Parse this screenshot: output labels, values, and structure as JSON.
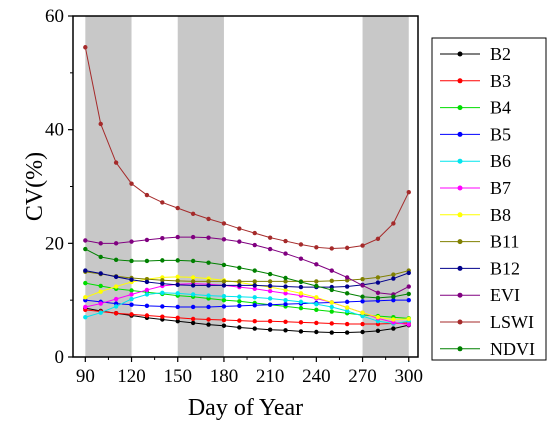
{
  "chart_data": {
    "type": "line",
    "title": "",
    "xlabel": "Day of Year",
    "ylabel": "CV(%)",
    "xlim": [
      82,
      306
    ],
    "ylim": [
      0,
      60
    ],
    "xticks": [
      90,
      120,
      150,
      180,
      210,
      240,
      270,
      300
    ],
    "yticks": [
      0,
      20,
      40,
      60
    ],
    "x": [
      90,
      100,
      110,
      120,
      130,
      140,
      150,
      160,
      170,
      180,
      190,
      200,
      210,
      220,
      230,
      240,
      250,
      260,
      270,
      280,
      290,
      300
    ],
    "shaded_ranges": [
      [
        90,
        120
      ],
      [
        150,
        180
      ],
      [
        270,
        300
      ]
    ],
    "shade_color": "#c8c8c8",
    "grid": false,
    "legend_position": "right",
    "series": [
      {
        "name": "B2",
        "color": "#000000",
        "values": [
          8.6,
          8.1,
          7.7,
          7.3,
          6.9,
          6.6,
          6.3,
          6.0,
          5.7,
          5.5,
          5.2,
          5.0,
          4.8,
          4.7,
          4.5,
          4.4,
          4.3,
          4.3,
          4.4,
          4.6,
          5.0,
          5.6
        ]
      },
      {
        "name": "B3",
        "color": "#ff0000",
        "values": [
          8.3,
          8.0,
          7.7,
          7.5,
          7.3,
          7.1,
          6.9,
          6.7,
          6.6,
          6.5,
          6.4,
          6.3,
          6.3,
          6.2,
          6.1,
          6.0,
          5.9,
          5.8,
          5.8,
          5.8,
          5.9,
          6.0
        ]
      },
      {
        "name": "B4",
        "color": "#00dd00",
        "values": [
          13.0,
          12.5,
          12.0,
          11.7,
          11.4,
          11.1,
          10.8,
          10.6,
          10.3,
          10.0,
          9.8,
          9.5,
          9.2,
          8.9,
          8.6,
          8.3,
          8.0,
          7.7,
          7.4,
          7.2,
          7.0,
          6.8
        ]
      },
      {
        "name": "B5",
        "color": "#0000ff",
        "values": [
          10.0,
          9.7,
          9.4,
          9.2,
          9.0,
          8.9,
          8.8,
          8.8,
          8.8,
          8.9,
          9.0,
          9.1,
          9.2,
          9.3,
          9.4,
          9.5,
          9.6,
          9.7,
          9.8,
          9.9,
          10.0,
          10.0
        ]
      },
      {
        "name": "B6",
        "color": "#00e5ee",
        "values": [
          7.0,
          7.8,
          8.9,
          10.2,
          11.0,
          11.3,
          11.2,
          11.0,
          10.8,
          10.7,
          10.6,
          10.5,
          10.3,
          10.0,
          9.7,
          9.3,
          8.8,
          8.1,
          7.2,
          6.3,
          5.9,
          6.3
        ]
      },
      {
        "name": "B7",
        "color": "#ff00ff",
        "values": [
          8.8,
          9.4,
          10.2,
          11.0,
          11.8,
          12.5,
          12.8,
          12.9,
          12.8,
          12.6,
          12.3,
          12.0,
          11.6,
          11.2,
          10.8,
          10.3,
          9.6,
          8.7,
          7.8,
          6.8,
          6.1,
          5.7
        ]
      },
      {
        "name": "B8",
        "color": "#ffff00",
        "values": [
          10.5,
          11.5,
          12.4,
          13.2,
          13.7,
          14.0,
          14.1,
          14.0,
          13.8,
          13.5,
          13.1,
          12.7,
          12.3,
          11.8,
          11.2,
          10.5,
          9.6,
          8.7,
          7.8,
          7.0,
          6.6,
          6.7
        ]
      },
      {
        "name": "B11",
        "color": "#808000",
        "values": [
          15.0,
          14.6,
          14.2,
          13.9,
          13.7,
          13.5,
          13.4,
          13.3,
          13.3,
          13.3,
          13.3,
          13.3,
          13.3,
          13.3,
          13.3,
          13.3,
          13.4,
          13.5,
          13.7,
          14.0,
          14.5,
          15.2
        ]
      },
      {
        "name": "B12",
        "color": "#00008b",
        "values": [
          15.2,
          14.7,
          14.1,
          13.6,
          13.2,
          12.9,
          12.7,
          12.6,
          12.6,
          12.6,
          12.6,
          12.6,
          12.5,
          12.4,
          12.3,
          12.3,
          12.3,
          12.4,
          12.7,
          13.1,
          13.8,
          14.8
        ]
      },
      {
        "name": "EVI",
        "color": "#800080",
        "values": [
          20.5,
          20.0,
          20.0,
          20.3,
          20.6,
          20.9,
          21.1,
          21.1,
          21.0,
          20.7,
          20.3,
          19.7,
          19.0,
          18.2,
          17.3,
          16.3,
          15.2,
          14.0,
          12.6,
          11.3,
          11.0,
          12.4
        ]
      },
      {
        "name": "LSWI",
        "color": "#a52a2a",
        "values": [
          54.5,
          41.0,
          34.2,
          30.5,
          28.5,
          27.2,
          26.2,
          25.2,
          24.3,
          23.5,
          22.6,
          21.8,
          21.0,
          20.4,
          19.8,
          19.3,
          19.1,
          19.2,
          19.6,
          20.8,
          23.5,
          29.0
        ]
      },
      {
        "name": "NDVI",
        "color": "#008000",
        "values": [
          19.0,
          17.6,
          17.1,
          16.9,
          16.9,
          17.0,
          17.0,
          16.9,
          16.6,
          16.2,
          15.7,
          15.2,
          14.6,
          13.9,
          13.2,
          12.5,
          11.8,
          11.2,
          10.6,
          10.4,
          10.6,
          11.1
        ]
      }
    ]
  }
}
